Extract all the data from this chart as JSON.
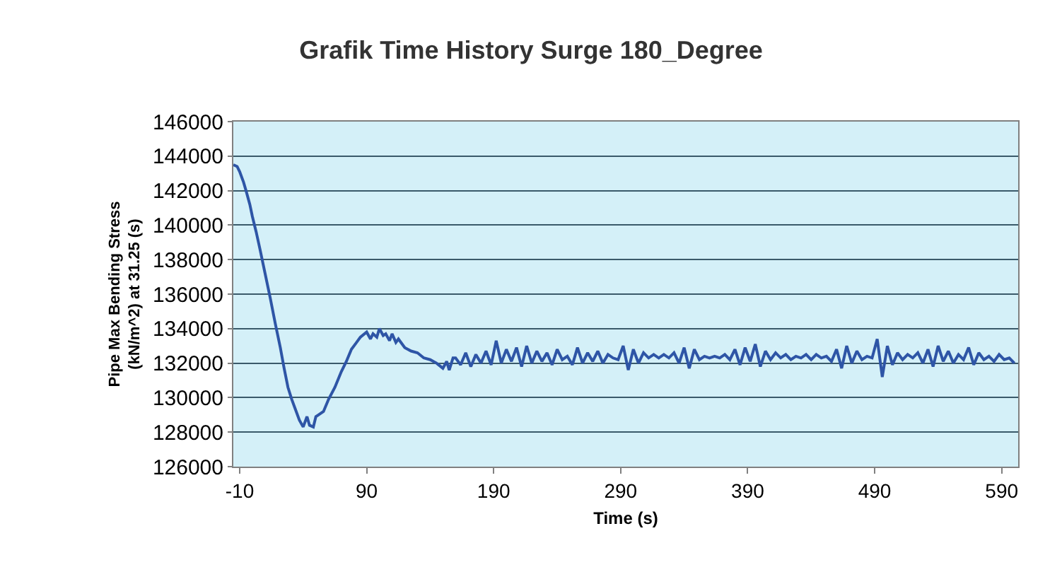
{
  "chart_data": {
    "type": "line",
    "title": "Grafik Time History Surge 180_Degree",
    "xlabel": "Time (s)",
    "ylabel": "Pipe Max Bending Stress\n(kN/m^2) at 31.25 (s)",
    "x": [
      -15,
      -12,
      -10,
      -7,
      -5,
      -2,
      0,
      3,
      6,
      10,
      14,
      18,
      22,
      25,
      28,
      31,
      34,
      37,
      40,
      43,
      45,
      48,
      50,
      52,
      56,
      60,
      65,
      70,
      74,
      78,
      82,
      85,
      90,
      93,
      95,
      98,
      100,
      103,
      105,
      108,
      110,
      113,
      115,
      120,
      125,
      130,
      135,
      140,
      145,
      150,
      153,
      155,
      158,
      160,
      164,
      168,
      172,
      176,
      180,
      184,
      188,
      192,
      196,
      200,
      204,
      208,
      212,
      216,
      220,
      224,
      228,
      232,
      236,
      240,
      244,
      248,
      252,
      256,
      260,
      264,
      268,
      272,
      276,
      280,
      284,
      288,
      292,
      296,
      300,
      304,
      308,
      312,
      316,
      320,
      324,
      328,
      332,
      336,
      340,
      344,
      348,
      352,
      356,
      360,
      364,
      368,
      372,
      376,
      380,
      384,
      388,
      392,
      396,
      400,
      404,
      408,
      412,
      416,
      420,
      424,
      428,
      432,
      436,
      440,
      444,
      448,
      452,
      456,
      460,
      464,
      468,
      472,
      476,
      480,
      484,
      488,
      492,
      496,
      500,
      504,
      508,
      512,
      516,
      520,
      524,
      528,
      532,
      536,
      540,
      544,
      548,
      552,
      556,
      560,
      564,
      568,
      572,
      576,
      580,
      584,
      588,
      592,
      596,
      600
    ],
    "series": [
      {
        "color": "#2e55a6",
        "values": [
          143500,
          143400,
          143100,
          142500,
          142000,
          141200,
          140500,
          139600,
          138600,
          137200,
          135800,
          134300,
          132900,
          131700,
          130600,
          129900,
          129300,
          128700,
          128300,
          128900,
          128400,
          128300,
          128900,
          129000,
          129200,
          129900,
          130600,
          131500,
          132100,
          132800,
          133200,
          133500,
          133800,
          133400,
          133700,
          133500,
          134000,
          133600,
          133700,
          133300,
          133700,
          133200,
          133400,
          132900,
          132700,
          132600,
          132300,
          132200,
          132000,
          131700,
          132100,
          131600,
          132300,
          132300,
          131900,
          132600,
          131800,
          132500,
          132000,
          132700,
          131900,
          133300,
          132000,
          132800,
          132100,
          132900,
          131800,
          133000,
          132000,
          132700,
          132100,
          132600,
          131900,
          132800,
          132200,
          132400,
          131900,
          132900,
          132000,
          132600,
          132100,
          132700,
          132000,
          132500,
          132300,
          132200,
          133000,
          131600,
          132800,
          132000,
          132600,
          132300,
          132500,
          132300,
          132500,
          132300,
          132600,
          132000,
          132900,
          131700,
          132800,
          132200,
          132400,
          132300,
          132400,
          132300,
          132500,
          132200,
          132800,
          131900,
          132900,
          132100,
          133100,
          131800,
          132700,
          132200,
          132600,
          132300,
          132500,
          132200,
          132400,
          132300,
          132500,
          132200,
          132500,
          132300,
          132400,
          132100,
          132800,
          131700,
          133000,
          132000,
          132700,
          132200,
          132400,
          132300,
          133400,
          131200,
          133000,
          131900,
          132600,
          132200,
          132500,
          132300,
          132600,
          132000,
          132800,
          131800,
          133000,
          132100,
          132700,
          132000,
          132500,
          132200,
          132900,
          131900,
          132600,
          132200,
          132400,
          132100,
          132500,
          132200,
          132300,
          132000
        ]
      }
    ],
    "xlim": [
      -15,
      603
    ],
    "xticks": [
      -10,
      90,
      190,
      290,
      390,
      490,
      590
    ],
    "ylim": [
      126000,
      146000
    ],
    "yticks": [
      126000,
      128000,
      130000,
      132000,
      134000,
      136000,
      138000,
      140000,
      142000,
      144000,
      146000
    ],
    "grid": "y",
    "marker": "none",
    "line_style": "solid"
  }
}
